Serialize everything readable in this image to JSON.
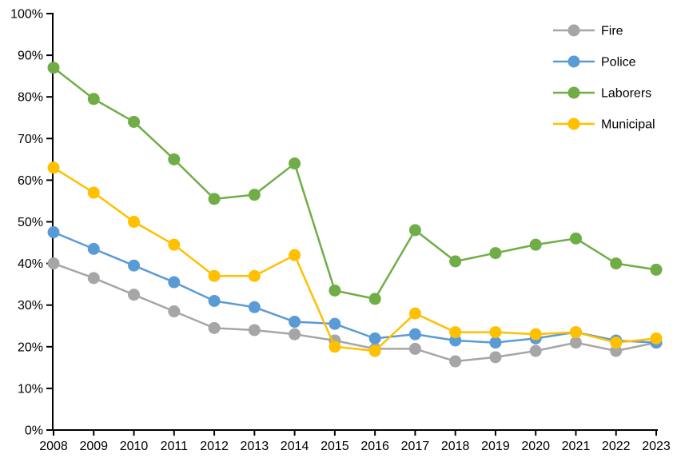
{
  "chart_data": {
    "type": "line",
    "title": "",
    "xlabel": "",
    "ylabel": "",
    "x": [
      "2008",
      "2009",
      "2010",
      "2011",
      "2012",
      "2013",
      "2014",
      "2015",
      "2016",
      "2017",
      "2018",
      "2019",
      "2020",
      "2021",
      "2022",
      "2023"
    ],
    "y_axis": {
      "min": 0,
      "max": 100,
      "step": 10,
      "format": "percent",
      "tick_labels": [
        "0%",
        "10%",
        "20%",
        "30%",
        "40%",
        "50%",
        "60%",
        "70%",
        "80%",
        "90%",
        "100%"
      ]
    },
    "grid": false,
    "legend_position": "top-right",
    "series": [
      {
        "name": "Fire",
        "color": "#A6A6A6",
        "values": [
          40,
          36.5,
          32.5,
          28.5,
          24.5,
          24,
          23,
          21.5,
          19.5,
          19.5,
          16.5,
          17.5,
          19,
          21,
          19,
          21
        ]
      },
      {
        "name": "Police",
        "color": "#5B9BD5",
        "values": [
          47.5,
          43.5,
          39.5,
          35.5,
          31,
          29.5,
          26,
          25.5,
          22,
          23,
          21.5,
          21,
          22,
          23.5,
          21.5,
          21
        ]
      },
      {
        "name": "Laborers",
        "color": "#70AD47",
        "values": [
          87,
          79.5,
          74,
          65,
          55.5,
          56.5,
          64,
          33.5,
          31.5,
          48,
          40.5,
          42.5,
          44.5,
          46,
          40,
          38.5
        ]
      },
      {
        "name": "Municipal",
        "color": "#FFC000",
        "values": [
          63,
          57,
          50,
          44.5,
          37,
          37,
          42,
          20,
          19,
          28,
          23.5,
          23.5,
          23,
          23.5,
          21,
          22
        ]
      }
    ],
    "colors": {
      "axis": "#000000",
      "label_text": "#000000",
      "background": "#FFFFFF"
    }
  }
}
